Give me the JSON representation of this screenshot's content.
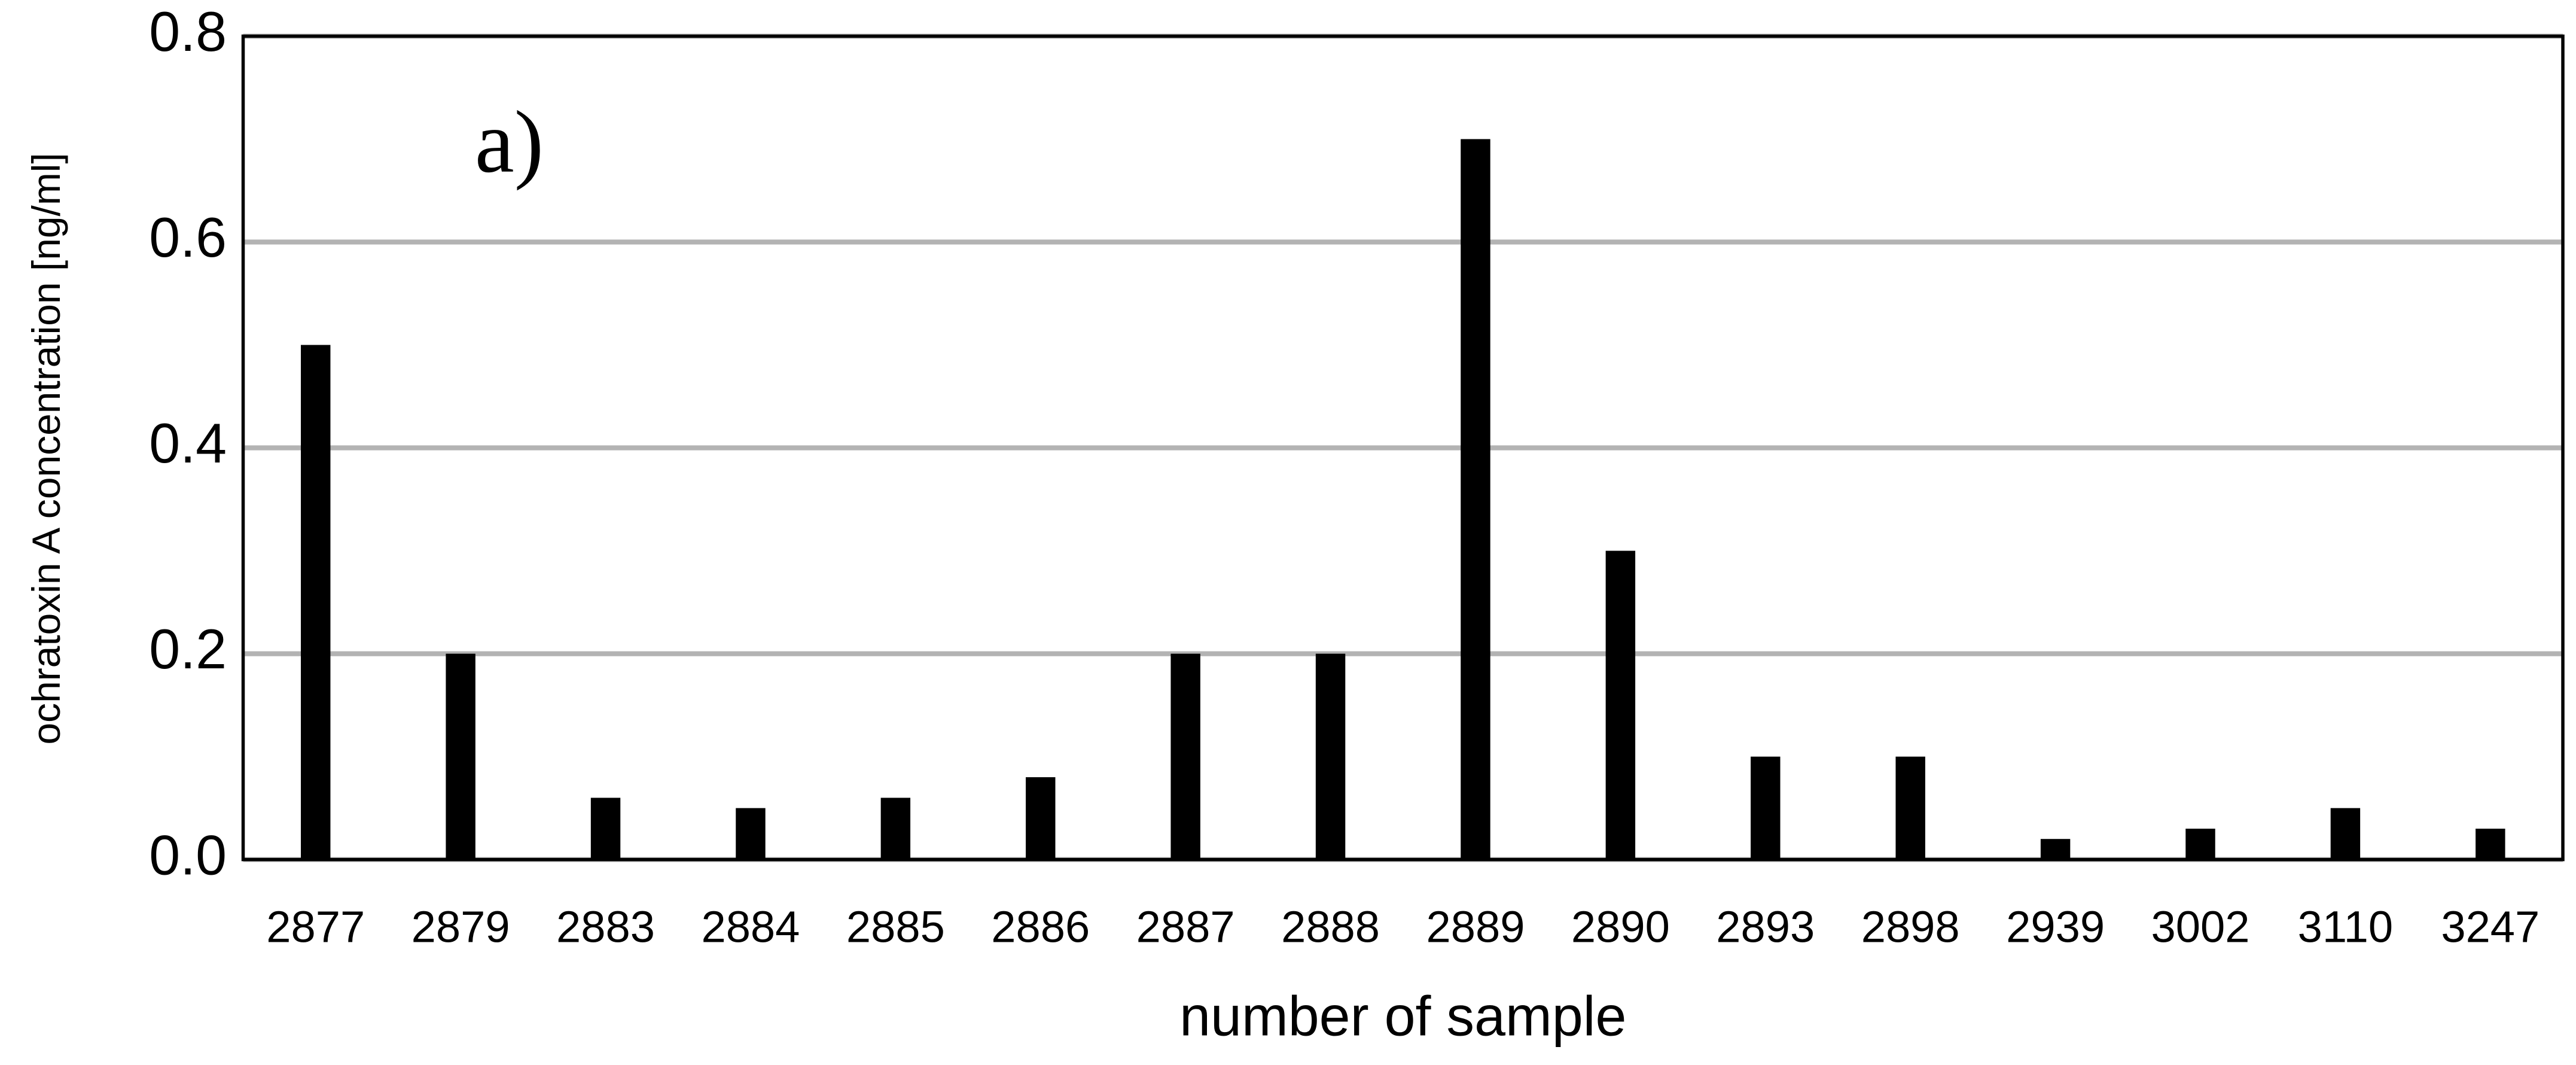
{
  "chart_data": {
    "type": "bar",
    "annotation": "a)",
    "x_label": "number of sample",
    "y_label": "ochratoxin A concentration [ng/ml]",
    "categories": [
      "2877",
      "2879",
      "2883",
      "2884",
      "2885",
      "2886",
      "2887",
      "2888",
      "2889",
      "2890",
      "2893",
      "2898",
      "2939",
      "3002",
      "3110",
      "3247"
    ],
    "values": [
      0.5,
      0.2,
      0.06,
      0.05,
      0.06,
      0.08,
      0.2,
      0.2,
      0.7,
      0.3,
      0.1,
      0.1,
      0.02,
      0.03,
      0.05,
      0.03
    ],
    "color": "#000000",
    "ylim": [
      0,
      0.8
    ],
    "yticks": [
      {
        "value": 0,
        "label": "0.0"
      },
      0.2,
      0.4,
      0.6,
      0.8
    ],
    "grid": true
  }
}
